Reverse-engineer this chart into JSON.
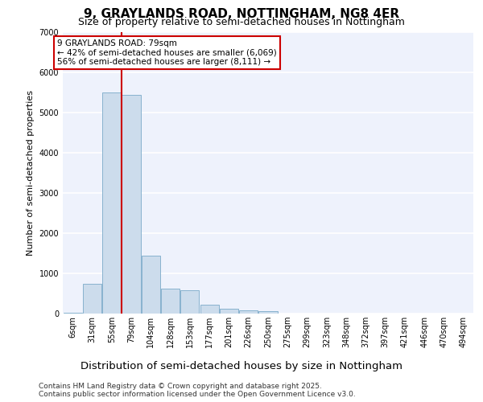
{
  "title": "9, GRAYLANDS ROAD, NOTTINGHAM, NG8 4ER",
  "subtitle": "Size of property relative to semi-detached houses in Nottingham",
  "xlabel": "Distribution of semi-detached houses by size in Nottingham",
  "ylabel": "Number of semi-detached properties",
  "footer_line1": "Contains HM Land Registry data © Crown copyright and database right 2025.",
  "footer_line2": "Contains public sector information licensed under the Open Government Licence v3.0.",
  "annotation_line1": "9 GRAYLANDS ROAD: 79sqm",
  "annotation_line2": "← 42% of semi-detached houses are smaller (6,069)",
  "annotation_line3": "56% of semi-detached houses are larger (8,111) →",
  "red_line_bin_index": 3,
  "categories": [
    "6sqm",
    "31sqm",
    "55sqm",
    "79sqm",
    "104sqm",
    "128sqm",
    "153sqm",
    "177sqm",
    "201sqm",
    "226sqm",
    "250sqm",
    "275sqm",
    "299sqm",
    "323sqm",
    "348sqm",
    "372sqm",
    "397sqm",
    "421sqm",
    "446sqm",
    "470sqm",
    "494sqm"
  ],
  "bar_values": [
    15,
    750,
    5500,
    5450,
    1450,
    620,
    580,
    230,
    130,
    80,
    60,
    0,
    0,
    0,
    0,
    0,
    0,
    0,
    0,
    0,
    0
  ],
  "bar_color": "#ccdcec",
  "bar_edge_color": "#7aaac8",
  "red_line_color": "#cc0000",
  "background_color": "#eef2fc",
  "ylim_max": 7000,
  "yticks": [
    0,
    1000,
    2000,
    3000,
    4000,
    5000,
    6000,
    7000
  ],
  "grid_color": "#ffffff",
  "title_fontsize": 11,
  "subtitle_fontsize": 9,
  "ylabel_fontsize": 8,
  "xlabel_fontsize": 9.5,
  "tick_fontsize": 7,
  "footer_fontsize": 6.5,
  "annotation_fontsize": 7.5
}
